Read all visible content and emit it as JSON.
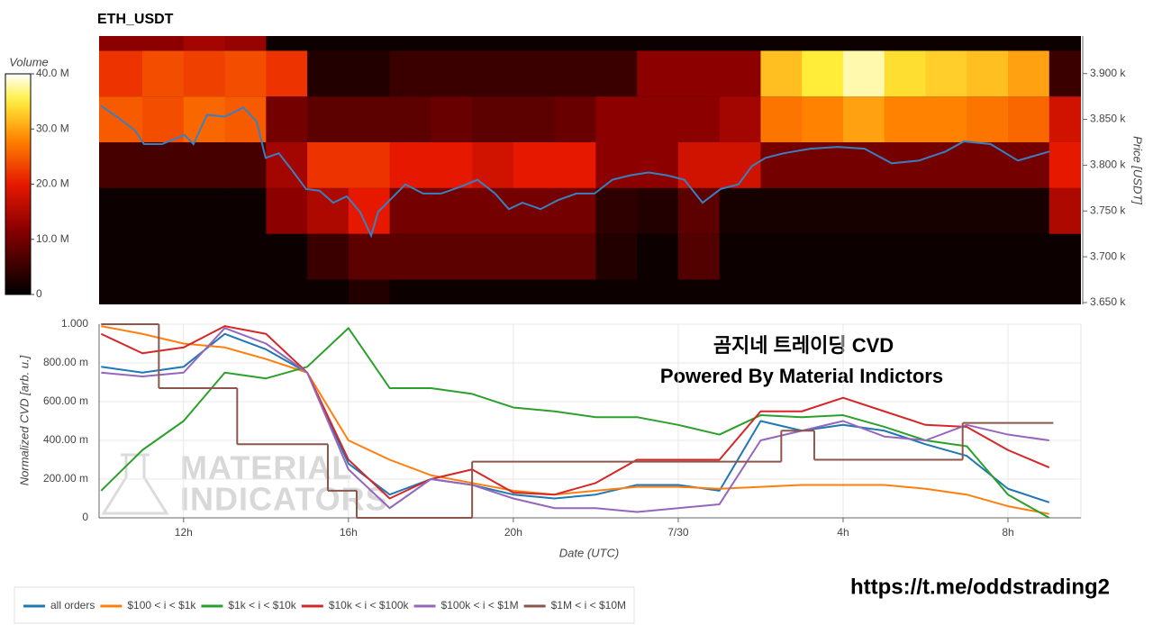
{
  "chart_data": [
    {
      "type": "heatmap",
      "title": "ETH_USDT",
      "ylabel": "Price [USDT]",
      "colormap": "hot",
      "xlim": [
        9.95,
        33.77
      ],
      "x_bins": [
        9.95,
        11,
        12,
        13,
        14,
        15,
        16,
        17,
        18,
        19,
        20,
        21,
        22,
        23,
        24,
        25,
        26,
        27,
        28,
        29,
        30,
        31,
        32,
        33,
        33.77
      ],
      "y_bins": [
        3625,
        3675,
        3725,
        3775,
        3825,
        3875,
        3925,
        3975
      ],
      "ylim": [
        3648,
        3941
      ],
      "yticks": [
        {
          "value": 3650,
          "label": "3.650 k"
        },
        {
          "value": 3700,
          "label": "3.700 k"
        },
        {
          "value": 3750,
          "label": "3.750 k"
        },
        {
          "value": 3800,
          "label": "3.800 k"
        },
        {
          "value": 3850,
          "label": "3.850 k"
        },
        {
          "value": 3900,
          "label": "3.900 k"
        }
      ],
      "z": [
        [
          1,
          1,
          1,
          1,
          1,
          1,
          3,
          1,
          1,
          1,
          1,
          1,
          1,
          1,
          1,
          1,
          1,
          1,
          1,
          1,
          1,
          1,
          1,
          1
        ],
        [
          1,
          1,
          1,
          1,
          1,
          5,
          8,
          8,
          8,
          8,
          8,
          8,
          3,
          1,
          7,
          1,
          1,
          1,
          1,
          1,
          1,
          1,
          1,
          1
        ],
        [
          1,
          1,
          1,
          1,
          12,
          15,
          20,
          10,
          10,
          10,
          10,
          10,
          4,
          3,
          8,
          2,
          2,
          2,
          2,
          2,
          2,
          2,
          2,
          15
        ],
        [
          6,
          6,
          6,
          6,
          14,
          22,
          22,
          20,
          20,
          18,
          20,
          20,
          12,
          12,
          18,
          18,
          10,
          10,
          10,
          10,
          10,
          10,
          10,
          20
        ],
        [
          25,
          24,
          26,
          25,
          10,
          8,
          8,
          8,
          9,
          8,
          8,
          9,
          12,
          12,
          12,
          14,
          27,
          28,
          30,
          28,
          28,
          27,
          26,
          18
        ],
        [
          22,
          24,
          23,
          24,
          22,
          3,
          3,
          5,
          5,
          5,
          5,
          5,
          5,
          12,
          12,
          12,
          32,
          35,
          38,
          34,
          33,
          32,
          30,
          5
        ],
        [
          12,
          12,
          14,
          13,
          1,
          1,
          1,
          1,
          1,
          1,
          1,
          1,
          1,
          1,
          1,
          1,
          1,
          1,
          1,
          1,
          1,
          1,
          1,
          1
        ]
      ],
      "colorbar": {
        "title": "Volume",
        "lim": [
          0,
          40
        ],
        "ticks": [
          0,
          {
            "value": 10,
            "label": "10.0 M"
          },
          {
            "value": 20,
            "label": "20.0 M"
          },
          {
            "value": 30,
            "label": "30.0 M"
          },
          {
            "value": 40,
            "label": "40.0 M"
          }
        ]
      },
      "series": [
        {
          "color": "#3a7fc0",
          "x": [
            9.99,
            10.38,
            10.82,
            11.04,
            11.48,
            12.02,
            12.24,
            12.57,
            13.01,
            13.45,
            13.77,
            13.99,
            14.31,
            14.64,
            14.97,
            15.3,
            15.63,
            15.96,
            16.28,
            16.55,
            16.72,
            17.05,
            17.38,
            17.81,
            18.25,
            18.69,
            19.13,
            19.56,
            19.89,
            20.22,
            20.66,
            21.09,
            21.53,
            21.97,
            22.4,
            22.84,
            23.28,
            23.72,
            24.15,
            24.59,
            25.03,
            25.46,
            25.79,
            26.12,
            26.56,
            27.21,
            27.87,
            28.52,
            29.18,
            29.84,
            30.49,
            30.93,
            31.58,
            32.24,
            33.01
          ],
          "values": [
            3865,
            3853,
            3838,
            3823,
            3823,
            3833,
            3823,
            3855,
            3853,
            3863,
            3848,
            3808,
            3813,
            3794,
            3774,
            3772,
            3759,
            3766,
            3749,
            3723,
            3749,
            3764,
            3779,
            3769,
            3769,
            3776,
            3784,
            3769,
            3752,
            3759,
            3752,
            3762,
            3769,
            3769,
            3784,
            3789,
            3792,
            3789,
            3784,
            3759,
            3774,
            3779,
            3799,
            3808,
            3813,
            3818,
            3820,
            3818,
            3802,
            3805,
            3815,
            3826,
            3823,
            3805,
            3815
          ]
        }
      ]
    },
    {
      "type": "line",
      "xlabel": "Date (UTC)",
      "ylabel": "Normalized CVD [arb. u.]",
      "grid": true,
      "legend": "bottom",
      "xlim": [
        9.95,
        33.77
      ],
      "ylim": [
        0,
        1
      ],
      "xticks": [
        {
          "value": 12,
          "label": "12h"
        },
        {
          "value": 16,
          "label": "16h"
        },
        {
          "value": 20,
          "label": "20h"
        },
        {
          "value": 24,
          "label": "7/30"
        },
        {
          "value": 28,
          "label": "4h"
        },
        {
          "value": 32,
          "label": "8h"
        }
      ],
      "yticks": [
        0,
        {
          "value": 0.2,
          "label": "200.00 m"
        },
        {
          "value": 0.4,
          "label": "400.00 m"
        },
        {
          "value": 0.6,
          "label": "600.00 m"
        },
        {
          "value": 0.8,
          "label": "800.00 m"
        },
        {
          "value": 1,
          "label": "1.000"
        }
      ],
      "x": [
        10,
        11,
        12,
        13,
        14,
        15,
        16,
        17,
        18,
        19,
        20,
        21,
        22,
        23,
        24,
        25,
        26,
        27,
        28,
        29,
        30,
        31,
        32,
        33
      ],
      "series": [
        {
          "name": "all orders",
          "color": "#1f77b4",
          "values": [
            0.78,
            0.75,
            0.78,
            0.95,
            0.87,
            0.75,
            0.28,
            0.12,
            0.2,
            0.17,
            0.12,
            0.1,
            0.12,
            0.17,
            0.17,
            0.14,
            0.5,
            0.45,
            0.48,
            0.45,
            0.38,
            0.32,
            0.15,
            0.08
          ]
        },
        {
          "name": "$100 < i < $1k",
          "color": "#ff7f0e",
          "values": [
            0.99,
            0.95,
            0.9,
            0.88,
            0.82,
            0.75,
            0.4,
            0.3,
            0.22,
            0.18,
            0.14,
            0.12,
            0.14,
            0.16,
            0.16,
            0.15,
            0.16,
            0.17,
            0.17,
            0.17,
            0.15,
            0.12,
            0.06,
            0.02
          ]
        },
        {
          "name": "$1k < i < $10k",
          "color": "#2ca02c",
          "values": [
            0.14,
            0.35,
            0.5,
            0.75,
            0.72,
            0.78,
            0.98,
            0.67,
            0.67,
            0.64,
            0.57,
            0.55,
            0.52,
            0.52,
            0.48,
            0.43,
            0.53,
            0.52,
            0.53,
            0.47,
            0.4,
            0.37,
            0.12,
            0
          ]
        },
        {
          "name": "$10k < i < $100k",
          "color": "#d62728",
          "values": [
            0.95,
            0.85,
            0.88,
            0.99,
            0.95,
            0.75,
            0.3,
            0.1,
            0.2,
            0.25,
            0.13,
            0.12,
            0.18,
            0.3,
            0.3,
            0.3,
            0.55,
            0.55,
            0.62,
            0.55,
            0.48,
            0.47,
            0.35,
            0.26
          ]
        },
        {
          "name": "$100k < i < $1M",
          "color": "#9467bd",
          "values": [
            0.75,
            0.73,
            0.75,
            0.98,
            0.9,
            0.75,
            0.25,
            0.05,
            0.2,
            0.17,
            0.1,
            0.05,
            0.05,
            0.03,
            0.05,
            0.07,
            0.4,
            0.45,
            0.5,
            0.42,
            0.4,
            0.48,
            0.43,
            0.4
          ]
        },
        {
          "name": "$1M < i < $10M",
          "color": "#8c564b",
          "step": true,
          "x": [
            10,
            11.4,
            13.3,
            15.5,
            16.2,
            19.0,
            26.5,
            27.3,
            30.9,
            33.1
          ],
          "values": [
            1.0,
            0.67,
            0.38,
            0.14,
            0,
            0.29,
            0.45,
            0.3,
            0.49,
            0.49
          ]
        }
      ],
      "annotations": [
        "곰지네 트레이딩 CVD",
        "Powered By Material Indictors"
      ],
      "watermark": [
        "MATERIAL",
        "INDICATORS"
      ],
      "footer": "https://t.me/oddstrading2"
    }
  ]
}
